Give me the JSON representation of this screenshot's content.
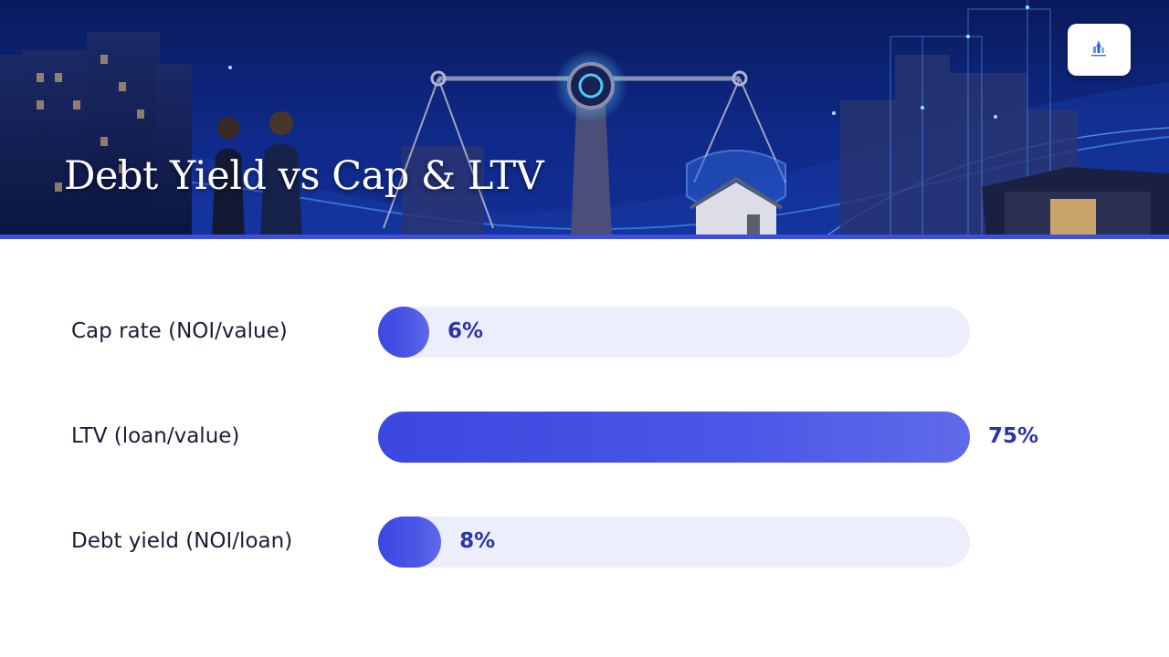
{
  "slide": {
    "title": "Debt Yield vs Cap & LTV",
    "colors": {
      "accent": "#3d4fe0",
      "bar": "#3b47e0",
      "track": "#eceefb",
      "value_text": "#2a34a8",
      "banner_bg": "#0b1f6e"
    },
    "banner_illustration": "city-skyline-balance-scale-house-shield-business-people",
    "logo_icon": "brand-logo-icon"
  },
  "chart_data": {
    "type": "bar",
    "orientation": "horizontal",
    "categories": [
      "Cap rate (NOI/value)",
      "LTV (loan/value)",
      "Debt yield (NOI/loan)"
    ],
    "values": [
      6,
      75,
      8
    ],
    "value_labels": [
      "6%",
      "75%",
      "8%"
    ],
    "xlim": [
      0,
      75
    ],
    "grid": false,
    "legend": "none"
  }
}
